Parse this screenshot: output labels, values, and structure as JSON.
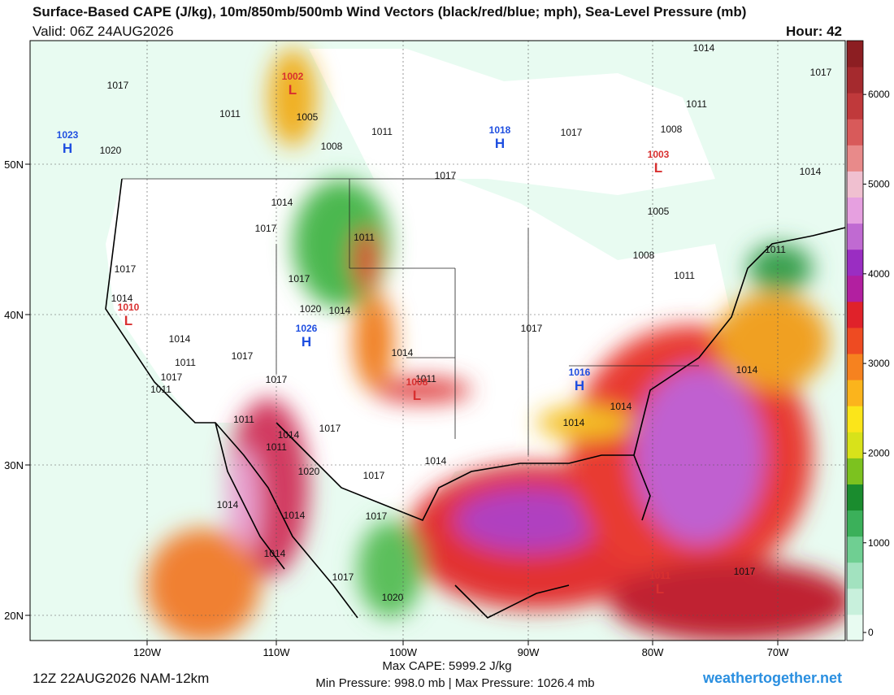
{
  "header": {
    "title": "Surface-Based CAPE (J/kg), 10m/850mb/500mb Wind Vectors (black/red/blue; mph), Sea-Level Pressure (mb)",
    "valid": "Valid: 06Z 24AUG2026",
    "hour": "Hour: 42"
  },
  "map": {
    "lat_labels": [
      "50N",
      "40N",
      "30N",
      "20N"
    ],
    "lon_labels": [
      "120W",
      "110W",
      "100W",
      "90W",
      "80W",
      "70W"
    ],
    "pressure_labels": [
      "1017",
      "1011",
      "1005",
      "1008",
      "1011",
      "1017",
      "1011",
      "1008",
      "1014",
      "1017",
      "1014",
      "1020",
      "1017",
      "1014",
      "1017",
      "1011",
      "1005",
      "1008",
      "1011",
      "1011",
      "1017",
      "1017",
      "1014",
      "1020",
      "1014",
      "1014",
      "1011",
      "1017",
      "1017",
      "1011",
      "1017",
      "1017",
      "1014",
      "1011",
      "1014",
      "1014",
      "1014",
      "1011",
      "1017",
      "1014",
      "1014",
      "1020",
      "1017",
      "1017",
      "1014",
      "1014",
      "1014",
      "1017",
      "1020",
      "1017",
      "1011"
    ],
    "centers": [
      {
        "label": "1002",
        "type": "L"
      },
      {
        "label": "1023",
        "type": "H"
      },
      {
        "label": "1018",
        "type": "H"
      },
      {
        "label": "1003",
        "type": "L"
      },
      {
        "label": "1010",
        "type": "L"
      },
      {
        "label": "1026",
        "type": "H"
      },
      {
        "label": "1008",
        "type": "L"
      },
      {
        "label": "1016",
        "type": "H"
      },
      {
        "label": "1011",
        "type": "L"
      }
    ]
  },
  "colorbar": {
    "lim": [
      -90,
      6600
    ],
    "ticks": [
      0,
      1000,
      2000,
      3000,
      4000,
      5000,
      6000
    ],
    "colors": [
      "#e8fbf1",
      "#c8f0dc",
      "#a2e2bf",
      "#6fcf92",
      "#3bb05a",
      "#1a8c2e",
      "#7cc21f",
      "#d8e21a",
      "#fbe51a",
      "#fbb41c",
      "#f6821f",
      "#ee4b22",
      "#e0222a",
      "#b21fa0",
      "#9a2dc2",
      "#c06ad2",
      "#e6a0e0",
      "#f0c0d0",
      "#e88a8a",
      "#d85a5a",
      "#c0393b",
      "#a52a2e",
      "#8c1e22"
    ]
  },
  "footer": {
    "run": "12Z 22AUG2026 NAM-12km",
    "max_cape": "Max CAPE: 5999.2 J/kg",
    "pressure_range": "Min Pressure: 998.0 mb | Max Pressure: 1026.4 mb",
    "site": "weathertogether.net"
  }
}
